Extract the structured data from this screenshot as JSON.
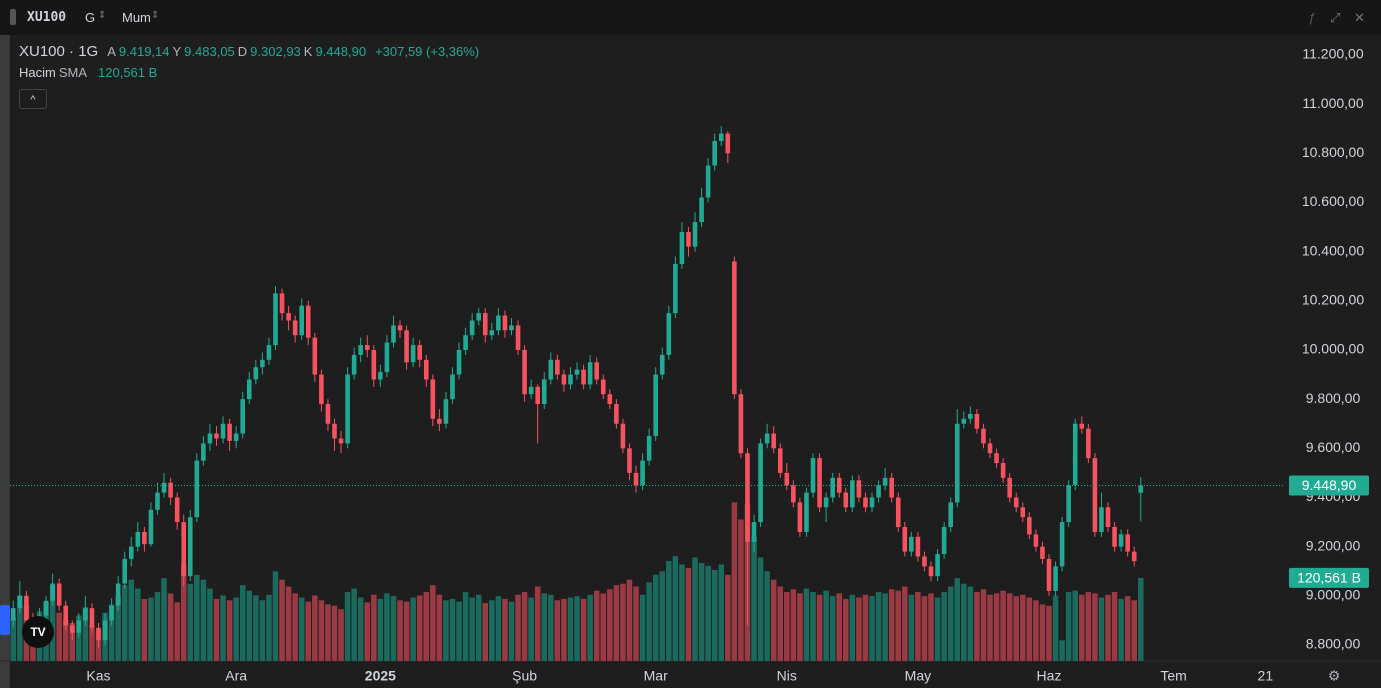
{
  "chart_data": {
    "type": "candlestick",
    "symbol": "XU100",
    "interval": "G",
    "style": "Mum",
    "legend": {
      "title": "XU100 · 1G",
      "open_key": "A",
      "open": "9.419,14",
      "high_key": "Y",
      "high": "9.483,05",
      "low_key": "D",
      "low": "9.302,93",
      "close_key": "K",
      "close": "9.448,90",
      "change": "+307,59 (+3,36%)",
      "volume_title": "Hacim",
      "volume_sma": "SMA",
      "volume": "120,561 B"
    },
    "up_color": "#22ab94",
    "down_color": "#f7525f",
    "volume_up_color": "#1b6a5e",
    "volume_down_color": "#9c3a44",
    "xlim": [
      -0.5,
      194
    ],
    "ylim": [
      8735,
      11277
    ],
    "volume_lim": [
      0,
      906
    ],
    "grid": false,
    "xticks": [
      {
        "value": 13,
        "label": "Kas"
      },
      {
        "value": 34,
        "label": "Ara"
      },
      {
        "value": 56,
        "label": "2025",
        "bold": true
      },
      {
        "value": 78,
        "label": "Şub"
      },
      {
        "value": 98,
        "label": "Mar"
      },
      {
        "value": 118,
        "label": "Nis"
      },
      {
        "value": 138,
        "label": "May"
      },
      {
        "value": 158,
        "label": "Haz"
      },
      {
        "value": 177,
        "label": "Tem"
      },
      {
        "value": 191,
        "label": "21"
      }
    ],
    "yticks": [
      {
        "value": 11200,
        "label": "11.200,00"
      },
      {
        "value": 11000,
        "label": "11.000,00"
      },
      {
        "value": 10800,
        "label": "10.800,00"
      },
      {
        "value": 10600,
        "label": "10.600,00"
      },
      {
        "value": 10400,
        "label": "10.400,00"
      },
      {
        "value": 10200,
        "label": "10.200,00"
      },
      {
        "value": 10000,
        "label": "10.000,00"
      },
      {
        "value": 9800,
        "label": "9.800,00"
      },
      {
        "value": 9600,
        "label": "9.600,00"
      },
      {
        "value": 9400,
        "label": "9.400,00"
      },
      {
        "value": 9200,
        "label": "9.200,00"
      },
      {
        "value": 9000,
        "label": "9.000,00"
      },
      {
        "value": 8800,
        "label": "8.800,00"
      }
    ],
    "ohlc": [
      [
        8900,
        8980,
        8870,
        8950
      ],
      [
        8950,
        9060,
        8930,
        9000
      ],
      [
        9000,
        9020,
        8880,
        8900
      ],
      [
        8900,
        8930,
        8840,
        8870
      ],
      [
        8870,
        8950,
        8850,
        8920
      ],
      [
        8920,
        9000,
        8900,
        8980
      ],
      [
        8980,
        9090,
        8960,
        9050
      ],
      [
        9050,
        9070,
        8940,
        8960
      ],
      [
        8960,
        8980,
        8860,
        8880
      ],
      [
        8880,
        8900,
        8820,
        8850
      ],
      [
        8850,
        8930,
        8830,
        8900
      ],
      [
        8900,
        9000,
        8880,
        8950
      ],
      [
        8950,
        8970,
        8850,
        8870
      ],
      [
        8870,
        8890,
        8790,
        8820
      ],
      [
        8820,
        8930,
        8800,
        8900
      ],
      [
        8900,
        8990,
        8880,
        8960
      ],
      [
        8960,
        9080,
        8940,
        9050
      ],
      [
        9050,
        9180,
        9030,
        9150
      ],
      [
        9150,
        9240,
        9120,
        9200
      ],
      [
        9200,
        9300,
        9180,
        9260
      ],
      [
        9260,
        9280,
        9180,
        9210
      ],
      [
        9210,
        9380,
        9200,
        9350
      ],
      [
        9350,
        9460,
        9330,
        9420
      ],
      [
        9420,
        9500,
        9400,
        9460
      ],
      [
        9460,
        9480,
        9370,
        9400
      ],
      [
        9400,
        9420,
        9270,
        9300
      ],
      [
        9300,
        9330,
        9040,
        9080
      ],
      [
        9080,
        9350,
        9060,
        9320
      ],
      [
        9320,
        9580,
        9300,
        9550
      ],
      [
        9550,
        9650,
        9530,
        9620
      ],
      [
        9620,
        9700,
        9590,
        9660
      ],
      [
        9660,
        9690,
        9610,
        9640
      ],
      [
        9640,
        9730,
        9620,
        9700
      ],
      [
        9700,
        9720,
        9590,
        9630
      ],
      [
        9630,
        9690,
        9600,
        9660
      ],
      [
        9660,
        9830,
        9640,
        9800
      ],
      [
        9800,
        9910,
        9780,
        9880
      ],
      [
        9880,
        9960,
        9860,
        9930
      ],
      [
        9930,
        9990,
        9900,
        9960
      ],
      [
        9960,
        10050,
        9940,
        10020
      ],
      [
        10020,
        10260,
        10000,
        10230
      ],
      [
        10230,
        10250,
        10120,
        10150
      ],
      [
        10150,
        10180,
        10080,
        10120
      ],
      [
        10120,
        10140,
        10030,
        10060
      ],
      [
        10060,
        10210,
        10040,
        10180
      ],
      [
        10180,
        10200,
        10020,
        10050
      ],
      [
        10050,
        10070,
        9870,
        9900
      ],
      [
        9900,
        9920,
        9750,
        9780
      ],
      [
        9780,
        9800,
        9670,
        9700
      ],
      [
        9700,
        9720,
        9590,
        9640
      ],
      [
        9640,
        9670,
        9580,
        9620
      ],
      [
        9620,
        9930,
        9600,
        9900
      ],
      [
        9900,
        10010,
        9880,
        9980
      ],
      [
        9980,
        10050,
        9950,
        10020
      ],
      [
        10020,
        10060,
        9970,
        10000
      ],
      [
        10000,
        10020,
        9850,
        9880
      ],
      [
        9880,
        9940,
        9850,
        9910
      ],
      [
        9910,
        10060,
        9890,
        10030
      ],
      [
        10030,
        10140,
        10010,
        10100
      ],
      [
        10100,
        10120,
        10050,
        10080
      ],
      [
        10080,
        10100,
        9920,
        9950
      ],
      [
        9950,
        10050,
        9930,
        10020
      ],
      [
        10020,
        10040,
        9930,
        9960
      ],
      [
        9960,
        9980,
        9850,
        9880
      ],
      [
        9880,
        9900,
        9690,
        9720
      ],
      [
        9720,
        9760,
        9670,
        9700
      ],
      [
        9700,
        9830,
        9680,
        9800
      ],
      [
        9800,
        9930,
        9780,
        9900
      ],
      [
        9900,
        10030,
        9880,
        10000
      ],
      [
        10000,
        10090,
        9980,
        10060
      ],
      [
        10060,
        10150,
        10040,
        10120
      ],
      [
        10120,
        10170,
        10100,
        10150
      ],
      [
        10150,
        10170,
        10030,
        10060
      ],
      [
        10060,
        10110,
        10040,
        10080
      ],
      [
        10080,
        10170,
        10060,
        10140
      ],
      [
        10140,
        10160,
        10050,
        10080
      ],
      [
        10080,
        10130,
        10060,
        10100
      ],
      [
        10100,
        10120,
        9980,
        10000
      ],
      [
        10000,
        10020,
        9790,
        9820
      ],
      [
        9820,
        9880,
        9800,
        9850
      ],
      [
        9850,
        9860,
        9620,
        9780
      ],
      [
        9780,
        9910,
        9760,
        9880
      ],
      [
        9880,
        9990,
        9860,
        9960
      ],
      [
        9960,
        9980,
        9880,
        9900
      ],
      [
        9900,
        9920,
        9830,
        9860
      ],
      [
        9860,
        9930,
        9840,
        9900
      ],
      [
        9900,
        9950,
        9880,
        9920
      ],
      [
        9920,
        9940,
        9840,
        9860
      ],
      [
        9860,
        9980,
        9840,
        9950
      ],
      [
        9950,
        9970,
        9860,
        9880
      ],
      [
        9880,
        9900,
        9800,
        9820
      ],
      [
        9820,
        9840,
        9760,
        9780
      ],
      [
        9780,
        9800,
        9680,
        9700
      ],
      [
        9700,
        9720,
        9580,
        9600
      ],
      [
        9600,
        9620,
        9470,
        9500
      ],
      [
        9500,
        9530,
        9420,
        9450
      ],
      [
        9450,
        9580,
        9430,
        9550
      ],
      [
        9550,
        9680,
        9530,
        9650
      ],
      [
        9650,
        9930,
        9630,
        9900
      ],
      [
        9900,
        10010,
        9880,
        9980
      ],
      [
        9980,
        10180,
        9960,
        10150
      ],
      [
        10150,
        10380,
        10130,
        10350
      ],
      [
        10350,
        10520,
        10330,
        10480
      ],
      [
        10480,
        10500,
        10380,
        10420
      ],
      [
        10420,
        10560,
        10400,
        10520
      ],
      [
        10520,
        10660,
        10500,
        10620
      ],
      [
        10620,
        10780,
        10600,
        10750
      ],
      [
        10750,
        10880,
        10730,
        10850
      ],
      [
        10850,
        10910,
        10830,
        10880
      ],
      [
        10880,
        10890,
        10760,
        10800
      ],
      [
        10360,
        10380,
        9800,
        9820
      ],
      [
        9820,
        9840,
        9560,
        9580
      ],
      [
        9580,
        9600,
        8880,
        9220
      ],
      [
        9220,
        9330,
        9180,
        9300
      ],
      [
        9300,
        9640,
        9280,
        9620
      ],
      [
        9620,
        9700,
        9600,
        9660
      ],
      [
        9660,
        9690,
        9580,
        9600
      ],
      [
        9600,
        9620,
        9480,
        9500
      ],
      [
        9500,
        9540,
        9430,
        9450
      ],
      [
        9450,
        9470,
        9360,
        9380
      ],
      [
        9380,
        9400,
        9240,
        9260
      ],
      [
        9260,
        9440,
        9240,
        9420
      ],
      [
        9420,
        9580,
        9400,
        9560
      ],
      [
        9560,
        9580,
        9340,
        9360
      ],
      [
        9360,
        9420,
        9300,
        9400
      ],
      [
        9400,
        9500,
        9380,
        9480
      ],
      [
        9480,
        9500,
        9400,
        9420
      ],
      [
        9420,
        9440,
        9340,
        9360
      ],
      [
        9360,
        9490,
        9340,
        9470
      ],
      [
        9470,
        9490,
        9380,
        9400
      ],
      [
        9400,
        9420,
        9340,
        9360
      ],
      [
        9360,
        9420,
        9340,
        9400
      ],
      [
        9400,
        9470,
        9380,
        9450
      ],
      [
        9450,
        9520,
        9430,
        9480
      ],
      [
        9480,
        9500,
        9380,
        9400
      ],
      [
        9400,
        9420,
        9260,
        9280
      ],
      [
        9280,
        9300,
        9160,
        9180
      ],
      [
        9180,
        9260,
        9160,
        9240
      ],
      [
        9240,
        9260,
        9140,
        9160
      ],
      [
        9160,
        9180,
        9100,
        9120
      ],
      [
        9120,
        9140,
        9060,
        9080
      ],
      [
        9080,
        9190,
        9060,
        9170
      ],
      [
        9170,
        9300,
        9150,
        9280
      ],
      [
        9280,
        9400,
        9260,
        9380
      ],
      [
        9380,
        9760,
        9360,
        9700
      ],
      [
        9700,
        9750,
        9680,
        9720
      ],
      [
        9720,
        9770,
        9700,
        9740
      ],
      [
        9740,
        9760,
        9660,
        9680
      ],
      [
        9680,
        9700,
        9600,
        9620
      ],
      [
        9620,
        9640,
        9560,
        9580
      ],
      [
        9580,
        9600,
        9520,
        9540
      ],
      [
        9540,
        9560,
        9460,
        9480
      ],
      [
        9480,
        9500,
        9380,
        9400
      ],
      [
        9400,
        9420,
        9340,
        9360
      ],
      [
        9360,
        9380,
        9300,
        9320
      ],
      [
        9320,
        9340,
        9230,
        9250
      ],
      [
        9250,
        9270,
        9180,
        9200
      ],
      [
        9200,
        9220,
        9130,
        9150
      ],
      [
        9150,
        9170,
        9000,
        9020
      ],
      [
        9020,
        9140,
        9000,
        9120
      ],
      [
        9120,
        9320,
        9100,
        9300
      ],
      [
        9300,
        9470,
        9280,
        9450
      ],
      [
        9450,
        9720,
        9430,
        9700
      ],
      [
        9700,
        9730,
        9660,
        9680
      ],
      [
        9680,
        9700,
        9540,
        9560
      ],
      [
        9560,
        9580,
        9240,
        9260
      ],
      [
        9260,
        9420,
        9240,
        9360
      ],
      [
        9360,
        9380,
        9260,
        9280
      ],
      [
        9280,
        9300,
        9180,
        9200
      ],
      [
        9200,
        9270,
        9180,
        9250
      ],
      [
        9250,
        9270,
        9160,
        9180
      ],
      [
        9180,
        9200,
        9120,
        9141.31
      ],
      [
        9419.14,
        9483.05,
        9302.93,
        9448.9
      ]
    ],
    "volume": [
      62,
      95,
      80,
      58,
      72,
      85,
      110,
      70,
      60,
      55,
      66,
      78,
      52,
      45,
      70,
      82,
      95,
      110,
      118,
      105,
      90,
      92,
      100,
      120,
      98,
      85,
      140,
      112,
      125,
      118,
      105,
      90,
      95,
      88,
      92,
      110,
      102,
      95,
      88,
      96,
      130,
      118,
      108,
      98,
      92,
      86,
      95,
      88,
      82,
      80,
      75,
      100,
      105,
      92,
      85,
      96,
      90,
      98,
      94,
      88,
      86,
      92,
      95,
      100,
      110,
      96,
      88,
      90,
      86,
      100,
      92,
      96,
      84,
      88,
      94,
      90,
      86,
      96,
      100,
      92,
      108,
      98,
      96,
      88,
      90,
      92,
      94,
      90,
      96,
      102,
      98,
      104,
      110,
      112,
      118,
      108,
      96,
      114,
      125,
      130,
      145,
      152,
      140,
      135,
      150,
      142,
      138,
      132,
      140,
      125,
      230,
      205,
      228,
      180,
      150,
      130,
      118,
      108,
      100,
      104,
      98,
      105,
      100,
      96,
      102,
      94,
      98,
      90,
      96,
      92,
      96,
      94,
      100,
      98,
      104,
      102,
      108,
      96,
      100,
      94,
      98,
      92,
      100,
      108,
      120,
      112,
      108,
      100,
      104,
      96,
      98,
      102,
      98,
      94,
      96,
      92,
      88,
      82,
      80,
      95,
      30,
      100,
      102,
      96,
      100,
      98,
      92,
      96,
      100,
      90,
      94,
      88,
      120.561
    ]
  }
}
